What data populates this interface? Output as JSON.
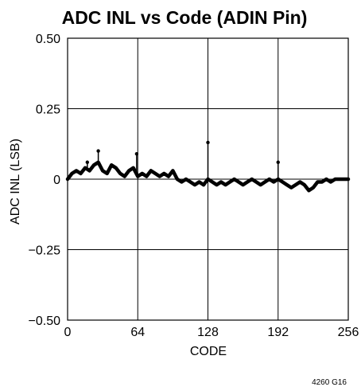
{
  "chart_data": {
    "type": "line",
    "title": "ADC INL vs Code (ADIN Pin)",
    "xlabel": "CODE",
    "ylabel": "ADC INL (LSB)",
    "xlim": [
      0,
      256
    ],
    "ylim": [
      -0.5,
      0.5
    ],
    "x_ticks": [
      0,
      64,
      128,
      192,
      256
    ],
    "y_ticks": [
      0.5,
      0.25,
      0,
      -0.25,
      -0.5
    ],
    "x_tick_labels": [
      "0",
      "64",
      "128",
      "192",
      "256"
    ],
    "y_tick_labels": [
      "0.50",
      "0.25",
      "0",
      "−0.25",
      "−0.50"
    ],
    "grid": true,
    "line_color": "#000000",
    "series": [
      {
        "x": [
          0,
          4,
          8,
          12,
          16,
          20,
          24,
          28,
          32,
          36,
          40,
          44,
          48,
          52,
          56,
          60,
          64,
          68,
          72,
          76,
          80,
          84,
          88,
          92,
          96,
          100,
          104,
          108,
          112,
          116,
          120,
          124,
          128,
          132,
          136,
          140,
          144,
          148,
          152,
          156,
          160,
          164,
          168,
          172,
          176,
          180,
          184,
          188,
          192,
          196,
          200,
          204,
          208,
          212,
          216,
          220,
          224,
          228,
          232,
          236,
          240,
          244,
          248,
          252,
          256
        ],
        "y": [
          0.0,
          0.02,
          0.03,
          0.02,
          0.04,
          0.03,
          0.05,
          0.06,
          0.03,
          0.02,
          0.05,
          0.04,
          0.02,
          0.01,
          0.03,
          0.04,
          0.01,
          0.02,
          0.01,
          0.03,
          0.02,
          0.01,
          0.02,
          0.01,
          0.03,
          0.0,
          -0.01,
          0.0,
          -0.01,
          -0.02,
          -0.01,
          -0.02,
          0.0,
          -0.01,
          -0.02,
          -0.01,
          -0.02,
          -0.01,
          0.0,
          -0.01,
          -0.02,
          -0.01,
          0.0,
          -0.01,
          -0.02,
          -0.01,
          0.0,
          -0.01,
          0.0,
          -0.01,
          -0.02,
          -0.03,
          -0.02,
          -0.01,
          -0.02,
          -0.04,
          -0.03,
          -0.01,
          -0.01,
          0.0,
          -0.01,
          0.0,
          0.0,
          0.0,
          0.0
        ]
      }
    ],
    "spikes": [
      {
        "x": 18,
        "y": 0.06
      },
      {
        "x": 28,
        "y": 0.1
      },
      {
        "x": 63,
        "y": 0.09
      },
      {
        "x": 128,
        "y": 0.13
      },
      {
        "x": 192,
        "y": 0.06
      }
    ]
  },
  "footnote": "4260 G16"
}
